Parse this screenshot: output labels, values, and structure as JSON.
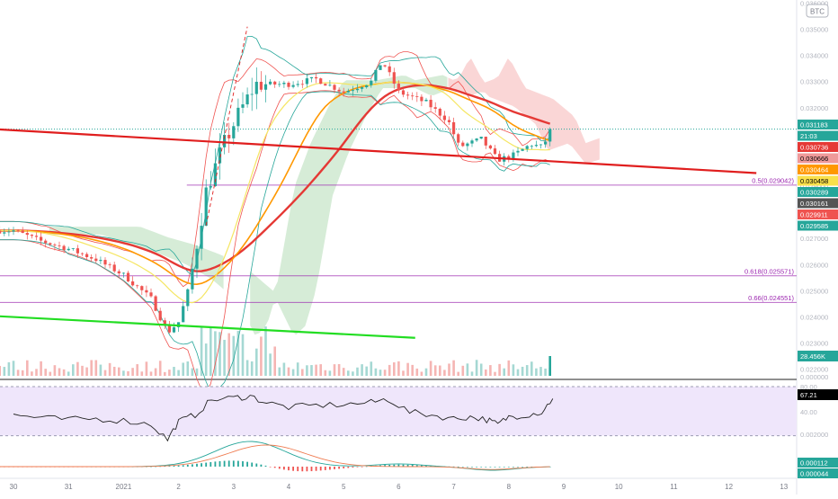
{
  "symbol_badge": "BTC",
  "colors": {
    "candle_up": "#26a69a",
    "candle_down": "#ef5350",
    "ma_red": "#e53935",
    "ma_orange": "#ff9800",
    "ma_yellow": "#f5e663",
    "bb_red": "#ef5350",
    "bb_green": "#26a69a",
    "cloud_green": "#c8e6c9",
    "cloud_red": "#f8c8c8",
    "trend_red": "#e01e1e",
    "trend_green": "#22dd22",
    "fib_line": "#9c27b0",
    "rsi_bg": "#efe6fb",
    "rsi_line": "#222222",
    "price_line": "#26a69a"
  },
  "chart_data": [
    {
      "type": "candlestick",
      "title": "",
      "ylim": [
        0.022,
        0.036
      ],
      "x_tick_labels": [
        "30",
        "31",
        "2021",
        "2",
        "3",
        "4",
        "5",
        "6",
        "7",
        "8",
        "9",
        "10",
        "11",
        "12",
        "13"
      ],
      "y_tick_labels": [
        "0.036000",
        "0.035000",
        "0.034000",
        "0.033000",
        "0.032000",
        "0.031000",
        "0.030000",
        "0.029000",
        "0.028000",
        "0.027000",
        "0.026000",
        "0.025000",
        "0.024000",
        "0.023000",
        "0.022000"
      ],
      "close_series": [
        {
          "day": 0.0,
          "close": 0.0273
        },
        {
          "day": 0.5,
          "close": 0.0269
        },
        {
          "day": 1.0,
          "close": 0.0266
        },
        {
          "day": 1.5,
          "close": 0.0262
        },
        {
          "day": 2.0,
          "close": 0.0256
        },
        {
          "day": 2.5,
          "close": 0.0247
        },
        {
          "day": 2.8,
          "close": 0.0234
        },
        {
          "day": 3.0,
          "close": 0.0238
        },
        {
          "day": 3.2,
          "close": 0.0252
        },
        {
          "day": 3.5,
          "close": 0.0288
        },
        {
          "day": 3.8,
          "close": 0.0305
        },
        {
          "day": 4.1,
          "close": 0.0318
        },
        {
          "day": 4.4,
          "close": 0.0329
        },
        {
          "day": 5.0,
          "close": 0.0329
        },
        {
          "day": 5.5,
          "close": 0.0331
        },
        {
          "day": 6.0,
          "close": 0.0326
        },
        {
          "day": 6.5,
          "close": 0.033
        },
        {
          "day": 6.7,
          "close": 0.0338
        },
        {
          "day": 7.0,
          "close": 0.0326
        },
        {
          "day": 7.5,
          "close": 0.0322
        },
        {
          "day": 7.9,
          "close": 0.0315
        },
        {
          "day": 8.1,
          "close": 0.0305
        },
        {
          "day": 8.5,
          "close": 0.0308
        },
        {
          "day": 8.8,
          "close": 0.03
        },
        {
          "day": 9.1,
          "close": 0.0302
        },
        {
          "day": 9.4,
          "close": 0.0306
        },
        {
          "day": 9.6,
          "close": 0.0305
        },
        {
          "day": 9.8,
          "close": 0.03118
        }
      ],
      "fibonacci_levels": [
        {
          "label": "0.5(0.029042)",
          "price": 0.029042
        },
        {
          "label": "0.618(0.025571)",
          "price": 0.025571
        },
        {
          "label": "0.66(0.024551)",
          "price": 0.024551
        }
      ],
      "trendlines": [
        {
          "name": "",
          "color": "red",
          "x": [
            -0.5,
            13.5
          ],
          "y": [
            0.0312,
            0.0295
          ]
        },
        {
          "name": "",
          "color": "green",
          "x": [
            -0.5,
            7.3
          ],
          "y": [
            0.02405,
            0.0232
          ]
        }
      ],
      "price_labels": [
        {
          "text": "0.031183",
          "bg": "#26a69a"
        },
        {
          "text": "21:03",
          "bg": "#26a69a"
        },
        {
          "text": "0.030736",
          "bg": "#e53935"
        },
        {
          "text": "0.030666",
          "bg": "#ef9a9a"
        },
        {
          "text": "0.030464",
          "bg": "#ff9800"
        },
        {
          "text": "0.030458",
          "bg": "#f9e04b"
        },
        {
          "text": "0.030289",
          "bg": "#26a69a"
        },
        {
          "text": "0.030161",
          "bg": "#555555"
        },
        {
          "text": "0.029911",
          "bg": "#ef5350"
        },
        {
          "text": "0.029585",
          "bg": "#26a69a"
        }
      ]
    },
    {
      "type": "bar",
      "title": "",
      "volume_label": "28.456K",
      "y_tick_label": "0.000000"
    },
    {
      "type": "line",
      "title": "",
      "ylim": [
        20,
        90
      ],
      "y_tick_labels": [
        "80.00",
        "40.00"
      ],
      "current_label": "67.21",
      "band": [
        30,
        70
      ],
      "x": [
        0,
        0.5,
        1,
        1.5,
        2,
        2.5,
        2.8,
        3,
        3.3,
        3.6,
        4,
        4.3,
        4.6,
        5,
        5.5,
        6,
        6.5,
        6.8,
        7.2,
        7.6,
        8,
        8.3,
        8.6,
        8.8,
        9,
        9.3,
        9.6,
        9.8
      ],
      "y": [
        50,
        47,
        45,
        46,
        44,
        40,
        24,
        43,
        50,
        66,
        68,
        70,
        63,
        58,
        60,
        61,
        63,
        67,
        53,
        50,
        46,
        48,
        45,
        40,
        48,
        50,
        53,
        67.21
      ]
    },
    {
      "type": "line",
      "title": "",
      "y_tick_label": "0.002000",
      "labels": [
        "0.000112",
        "0.000044"
      ]
    }
  ]
}
